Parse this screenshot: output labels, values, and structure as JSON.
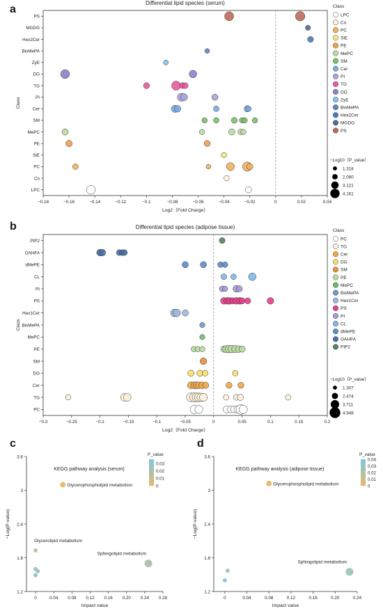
{
  "panels": {
    "a": "a",
    "b": "b",
    "c": "c",
    "d": "d"
  },
  "legend_title_class": "Class",
  "size_legend_title": "−Log10（P_value）",
  "colorbar_title": "P_value",
  "chart_data": [
    {
      "id": "a",
      "type": "scatter",
      "title": "Differential lipid species (serum)",
      "xlabel": "Log2（Fold Charge）",
      "ylabel": "Class",
      "xlim": [
        -0.18,
        0.04
      ],
      "xticks": [
        -0.18,
        -0.16,
        -0.14,
        -0.12,
        -0.1,
        -0.08,
        -0.06,
        -0.04,
        -0.02,
        0,
        0.02,
        0.04
      ],
      "xtick_labels": [
        "−0.18",
        "−0.16",
        "−0.14",
        "−0.12",
        "−0.1",
        "−0.08",
        "−0.06",
        "−0.04",
        "−0.02",
        "0",
        "0.02",
        "0.04"
      ],
      "categories": [
        "PS",
        "MGDG",
        "Hex2Cer",
        "BisMePA",
        "ZyE",
        "DG",
        "TG",
        "PI",
        "Cer",
        "SM",
        "MePC",
        "PE",
        "SiE",
        "PC",
        "Co",
        "LPC"
      ],
      "legend": [
        "LPC",
        "Co",
        "PC",
        "SiE",
        "PE",
        "MePC",
        "SM",
        "Cer",
        "PI",
        "TG",
        "DG",
        "ZyE",
        "BisMePA",
        "Hex2Cer",
        "MGDG",
        "PS"
      ],
      "colors": {
        "LPC": "#ffffff",
        "Co": "#fff3dc",
        "PC": "#f2b15f",
        "SiE": "#f5e77a",
        "PE": "#ee9f55",
        "MePC": "#b9dca4",
        "SM": "#7cbf6e",
        "Cer": "#78aee0",
        "PI": "#a7a6d8",
        "TG": "#ea5a9c",
        "DG": "#9080c8",
        "ZyE": "#88c2ec",
        "BisMePA": "#5f86c4",
        "Hex2Cer": "#4f7bb5",
        "MGDG": "#4c6e9b",
        "PS": "#bd6b5a"
      },
      "size_legend": [
        1.318,
        2.08,
        3.121,
        4.161
      ],
      "size_legend_labels": [
        "1.318",
        "2.080",
        "3.121",
        "4.161"
      ],
      "points": [
        {
          "c": "PS",
          "x": -0.036,
          "s": 3.3
        },
        {
          "c": "PS",
          "x": 0.019,
          "s": 3.5
        },
        {
          "c": "MGDG",
          "x": 0.025,
          "s": 1.5
        },
        {
          "c": "Hex2Cer",
          "x": 0.027,
          "s": 1.8
        },
        {
          "c": "BisMePA",
          "x": -0.053,
          "s": 1.3
        },
        {
          "c": "ZyE",
          "x": -0.085,
          "s": 1.4
        },
        {
          "c": "DG",
          "x": -0.163,
          "s": 3.2
        },
        {
          "c": "DG",
          "x": -0.064,
          "s": 2.6
        },
        {
          "c": "TG",
          "x": -0.1,
          "s": 1.9
        },
        {
          "c": "TG",
          "x": -0.077,
          "s": 3.3
        },
        {
          "c": "TG",
          "x": -0.072,
          "s": 1.8
        },
        {
          "c": "TG",
          "x": -0.07,
          "s": 1.8
        },
        {
          "c": "PI",
          "x": -0.073,
          "s": 2.8
        },
        {
          "c": "PI",
          "x": -0.071,
          "s": 2.4
        },
        {
          "c": "PI",
          "x": -0.047,
          "s": 2.0
        },
        {
          "c": "Cer",
          "x": -0.078,
          "s": 2.4
        },
        {
          "c": "Cer",
          "x": -0.076,
          "s": 2.2
        },
        {
          "c": "Cer",
          "x": -0.046,
          "s": 1.7
        },
        {
          "c": "Cer",
          "x": -0.022,
          "s": 2.0
        },
        {
          "c": "Cer",
          "x": -0.021,
          "s": 1.6
        },
        {
          "c": "SM",
          "x": -0.055,
          "s": 1.6
        },
        {
          "c": "SM",
          "x": -0.046,
          "s": 1.6
        },
        {
          "c": "SM",
          "x": -0.032,
          "s": 1.8
        },
        {
          "c": "SM",
          "x": -0.026,
          "s": 1.6
        },
        {
          "c": "SM",
          "x": -0.024,
          "s": 1.6
        },
        {
          "c": "SM",
          "x": -0.016,
          "s": 1.6
        },
        {
          "c": "MePC",
          "x": -0.163,
          "s": 2.0
        },
        {
          "c": "MePC",
          "x": -0.057,
          "s": 1.6
        },
        {
          "c": "MePC",
          "x": -0.034,
          "s": 2.0
        },
        {
          "c": "MePC",
          "x": -0.027,
          "s": 1.7
        },
        {
          "c": "MePC",
          "x": -0.025,
          "s": 1.6
        },
        {
          "c": "PE",
          "x": -0.16,
          "s": 2.1
        },
        {
          "c": "PE",
          "x": -0.053,
          "s": 1.9
        },
        {
          "c": "SiE",
          "x": -0.04,
          "s": 1.6
        },
        {
          "c": "PC",
          "x": -0.155,
          "s": 1.7
        },
        {
          "c": "PC",
          "x": -0.052,
          "s": 1.3
        },
        {
          "c": "PC",
          "x": -0.035,
          "s": 2.8
        },
        {
          "c": "PC",
          "x": -0.022,
          "s": 3.4
        },
        {
          "c": "PC",
          "x": -0.02,
          "s": 2.0
        },
        {
          "c": "Co",
          "x": -0.038,
          "s": 1.6
        },
        {
          "c": "LPC",
          "x": -0.143,
          "s": 3.2
        },
        {
          "c": "LPC",
          "x": -0.021,
          "s": 1.9
        }
      ]
    },
    {
      "id": "b",
      "type": "scatter",
      "title": "Differential lipid species (adipose tissue)",
      "xlabel": "Log2（Fold Charge）",
      "ylabel": "Class",
      "xlim": [
        -0.3,
        0.2
      ],
      "xticks": [
        -0.3,
        -0.25,
        -0.2,
        -0.15,
        -0.1,
        -0.05,
        0,
        0.05,
        0.1,
        0.15,
        0.2
      ],
      "xtick_labels": [
        "−0.3",
        "−0.25",
        "−0.2",
        "−0.15",
        "−0.1",
        "−0.05",
        "0",
        "0.05",
        "0.1",
        "0.15",
        "0.2"
      ],
      "categories": [
        "PIP2",
        "OAHFA",
        "dMePE",
        "CL",
        "PI",
        "PS",
        "Hex1Cer",
        "BisMePA",
        "MePC",
        "PE",
        "SM",
        "DG",
        "Cer",
        "TG",
        "PC"
      ],
      "legend": [
        "PC",
        "TG",
        "Cer",
        "DG",
        "SM",
        "PE",
        "MePC",
        "BisMePA",
        "Hex1Cer",
        "PS",
        "PI",
        "CL",
        "dMePE",
        "OAHFA",
        "PIP2"
      ],
      "colors": {
        "PC": "#ffffff",
        "TG": "#fdf0dc",
        "Cer": "#f0a84a",
        "DG": "#f6e06a",
        "SM": "#ec8f3f",
        "PE": "#b8dca2",
        "MePC": "#6fbb6a",
        "BisMePA": "#6f9ad0",
        "Hex1Cer": "#9db9dd",
        "PS": "#e53f8a",
        "PI": "#a89ad8",
        "CL": "#80b8e8",
        "dMePE": "#5e8ccc",
        "OAHFA": "#4a6fa5",
        "PIP2": "#55835d"
      },
      "size_legend": [
        1.307,
        2.474,
        3.711,
        4.948
      ],
      "size_legend_labels": [
        "1.307",
        "2.474",
        "3.711",
        "4.948"
      ],
      "points": [
        {
          "c": "PIP2",
          "x": 0.015,
          "s": 1.8
        },
        {
          "c": "OAHFA",
          "x": -0.2,
          "s": 2.2
        },
        {
          "c": "OAHFA",
          "x": -0.196,
          "s": 2.2
        },
        {
          "c": "OAHFA",
          "x": -0.166,
          "s": 1.8
        },
        {
          "c": "OAHFA",
          "x": -0.161,
          "s": 1.8
        },
        {
          "c": "OAHFA",
          "x": -0.157,
          "s": 1.8
        },
        {
          "c": "dMePE",
          "x": -0.05,
          "s": 2.0
        },
        {
          "c": "dMePE",
          "x": -0.018,
          "s": 2.0
        },
        {
          "c": "dMePE",
          "x": 0.012,
          "s": 1.7
        },
        {
          "c": "dMePE",
          "x": 0.02,
          "s": 1.7
        },
        {
          "c": "CL",
          "x": 0.018,
          "s": 1.8
        },
        {
          "c": "CL",
          "x": 0.035,
          "s": 1.7
        },
        {
          "c": "CL",
          "x": 0.068,
          "s": 2.6
        },
        {
          "c": "PI",
          "x": 0.015,
          "s": 1.7
        },
        {
          "c": "PI",
          "x": 0.02,
          "s": 1.6
        },
        {
          "c": "PI",
          "x": 0.04,
          "s": 2.2
        },
        {
          "c": "PI",
          "x": 0.045,
          "s": 2.0
        },
        {
          "c": "PS",
          "x": 0.018,
          "s": 2.2
        },
        {
          "c": "PS",
          "x": 0.024,
          "s": 2.2
        },
        {
          "c": "PS",
          "x": 0.028,
          "s": 2.2
        },
        {
          "c": "PS",
          "x": 0.034,
          "s": 2.0
        },
        {
          "c": "PS",
          "x": 0.04,
          "s": 2.2
        },
        {
          "c": "PS",
          "x": 0.046,
          "s": 2.2
        },
        {
          "c": "PS",
          "x": 0.05,
          "s": 2.0
        },
        {
          "c": "PS",
          "x": 0.06,
          "s": 1.9
        },
        {
          "c": "PS",
          "x": 0.1,
          "s": 2.2
        },
        {
          "c": "Hex1Cer",
          "x": -0.069,
          "s": 2.6
        },
        {
          "c": "Hex1Cer",
          "x": -0.065,
          "s": 2.6
        },
        {
          "c": "Hex1Cer",
          "x": -0.05,
          "s": 2.0
        },
        {
          "c": "BisMePA",
          "x": -0.02,
          "s": 1.5
        },
        {
          "c": "MePC",
          "x": -0.02,
          "s": 1.5
        },
        {
          "c": "PE",
          "x": -0.035,
          "s": 1.6
        },
        {
          "c": "PE",
          "x": -0.028,
          "s": 1.6
        },
        {
          "c": "PE",
          "x": -0.02,
          "s": 1.6
        },
        {
          "c": "PE",
          "x": 0.018,
          "s": 2.0
        },
        {
          "c": "PE",
          "x": 0.022,
          "s": 2.4
        },
        {
          "c": "PE",
          "x": 0.027,
          "s": 2.6
        },
        {
          "c": "PE",
          "x": 0.032,
          "s": 2.6
        },
        {
          "c": "PE",
          "x": 0.038,
          "s": 2.4
        },
        {
          "c": "PE",
          "x": 0.044,
          "s": 2.2
        },
        {
          "c": "PE",
          "x": 0.05,
          "s": 2.0
        },
        {
          "c": "SM",
          "x": -0.018,
          "s": 2.2
        },
        {
          "c": "DG",
          "x": -0.04,
          "s": 2.0
        },
        {
          "c": "DG",
          "x": -0.024,
          "s": 2.0
        },
        {
          "c": "DG",
          "x": -0.015,
          "s": 1.8
        },
        {
          "c": "DG",
          "x": 0.038,
          "s": 1.7
        },
        {
          "c": "Cer",
          "x": -0.04,
          "s": 2.3
        },
        {
          "c": "Cer",
          "x": -0.034,
          "s": 2.3
        },
        {
          "c": "Cer",
          "x": -0.03,
          "s": 2.3
        },
        {
          "c": "Cer",
          "x": -0.026,
          "s": 2.2
        },
        {
          "c": "Cer",
          "x": -0.02,
          "s": 2.2
        },
        {
          "c": "Cer",
          "x": -0.014,
          "s": 2.0
        },
        {
          "c": "Cer",
          "x": 0.027,
          "s": 1.9
        },
        {
          "c": "Cer",
          "x": 0.048,
          "s": 1.9
        },
        {
          "c": "TG",
          "x": -0.256,
          "s": 1.6
        },
        {
          "c": "TG",
          "x": -0.157,
          "s": 2.6
        },
        {
          "c": "TG",
          "x": -0.152,
          "s": 2.6
        },
        {
          "c": "TG",
          "x": -0.04,
          "s": 3.2
        },
        {
          "c": "TG",
          "x": -0.034,
          "s": 3.3
        },
        {
          "c": "TG",
          "x": -0.03,
          "s": 3.2
        },
        {
          "c": "TG",
          "x": -0.026,
          "s": 3.1
        },
        {
          "c": "TG",
          "x": -0.022,
          "s": 3.0
        },
        {
          "c": "TG",
          "x": -0.018,
          "s": 2.8
        },
        {
          "c": "TG",
          "x": 0.022,
          "s": 1.7
        },
        {
          "c": "TG",
          "x": 0.04,
          "s": 1.8
        },
        {
          "c": "TG",
          "x": 0.047,
          "s": 2.0
        },
        {
          "c": "TG",
          "x": 0.131,
          "s": 1.7
        },
        {
          "c": "PC",
          "x": -0.034,
          "s": 3.0
        },
        {
          "c": "PC",
          "x": -0.026,
          "s": 2.8
        },
        {
          "c": "PC",
          "x": 0.023,
          "s": 2.4
        },
        {
          "c": "PC",
          "x": 0.03,
          "s": 2.2
        },
        {
          "c": "PC",
          "x": 0.036,
          "s": 2.2
        },
        {
          "c": "PC",
          "x": 0.042,
          "s": 2.4
        },
        {
          "c": "PC",
          "x": 0.048,
          "s": 3.6
        },
        {
          "c": "PC",
          "x": 0.052,
          "s": 3.0
        }
      ]
    },
    {
      "id": "c",
      "type": "scatter",
      "title": "KEGG pathway analysis (serum)",
      "xlabel": "Impact value",
      "ylabel": "−Log(P-value)",
      "xlim": [
        -0.02,
        0.28
      ],
      "ylim": [
        1.2,
        3.6
      ],
      "xticks": [
        0,
        0.04,
        0.08,
        0.12,
        0.16,
        0.2,
        0.24,
        0.28
      ],
      "xtick_labels": [
        "0",
        "0.04",
        "0.08",
        "0.12",
        "0.16",
        "0.20",
        "0.24",
        "0.28"
      ],
      "yticks": [
        1.2,
        1.8,
        2.4,
        3,
        3.6
      ],
      "ytick_labels": [
        "1.2",
        "1.8",
        "2.4",
        "3",
        "3.6"
      ],
      "colorbar": {
        "ticks": [
          0,
          0.01,
          0.02,
          0.03
        ],
        "tick_labels": [
          "0",
          "0.01",
          "0.02",
          "0.03"
        ],
        "max": 0.036
      },
      "points": [
        {
          "x": 0.06,
          "y": 3.1,
          "p": 0.0008,
          "r": 4.0,
          "label": "Glycerophospholipid metabolism"
        },
        {
          "x": 0.0,
          "y": 1.93,
          "p": 0.0117,
          "r": 3.0,
          "label": "Glycerolipid metabolism"
        },
        {
          "x": 0.248,
          "y": 1.7,
          "p": 0.02,
          "r": 5.5,
          "label": "Sphingolipid metabolism"
        },
        {
          "x": 0.0,
          "y": 1.6,
          "p": 0.025,
          "r": 3.0,
          "label": ""
        },
        {
          "x": 0.005,
          "y": 1.56,
          "p": 0.0275,
          "r": 3.0,
          "label": ""
        },
        {
          "x": 0.0,
          "y": 1.49,
          "p": 0.032,
          "r": 3.0,
          "label": ""
        }
      ]
    },
    {
      "id": "d",
      "type": "scatter",
      "title": "KEGG pathway analysis (adipose tissue)",
      "xlabel": "Impact value",
      "ylabel": "−Log(P-value)",
      "xlim": [
        -0.02,
        0.24
      ],
      "ylim": [
        1.2,
        3.6
      ],
      "xticks": [
        0,
        0.04,
        0.08,
        0.12,
        0.16,
        0.2,
        0.24
      ],
      "xtick_labels": [
        "0",
        "0.04",
        "0.08",
        "0.12",
        "0.16",
        "0.20",
        "0.24"
      ],
      "yticks": [
        1.2,
        1.8,
        2.4,
        3,
        3.6
      ],
      "ytick_labels": [
        "1.2",
        "1.8",
        "2.4",
        "3",
        "3.6"
      ],
      "colorbar": {
        "ticks": [
          0,
          0.01,
          0.02,
          0.03,
          0.04
        ],
        "tick_labels": [
          "0",
          "0.01",
          "0.02",
          "0.03",
          "0.04"
        ],
        "max": 0.04
      },
      "points": [
        {
          "x": 0.08,
          "y": 3.12,
          "p": 0.00075,
          "r": 4.0,
          "label": "Glycerophospholipid metabolism"
        },
        {
          "x": 0.226,
          "y": 1.55,
          "p": 0.028,
          "r": 5.5,
          "label": "Sphingolipid metabolism"
        },
        {
          "x": 0.005,
          "y": 1.57,
          "p": 0.027,
          "r": 3.0,
          "label": ""
        },
        {
          "x": 0.0,
          "y": 1.4,
          "p": 0.04,
          "r": 3.0,
          "label": ""
        }
      ]
    }
  ]
}
